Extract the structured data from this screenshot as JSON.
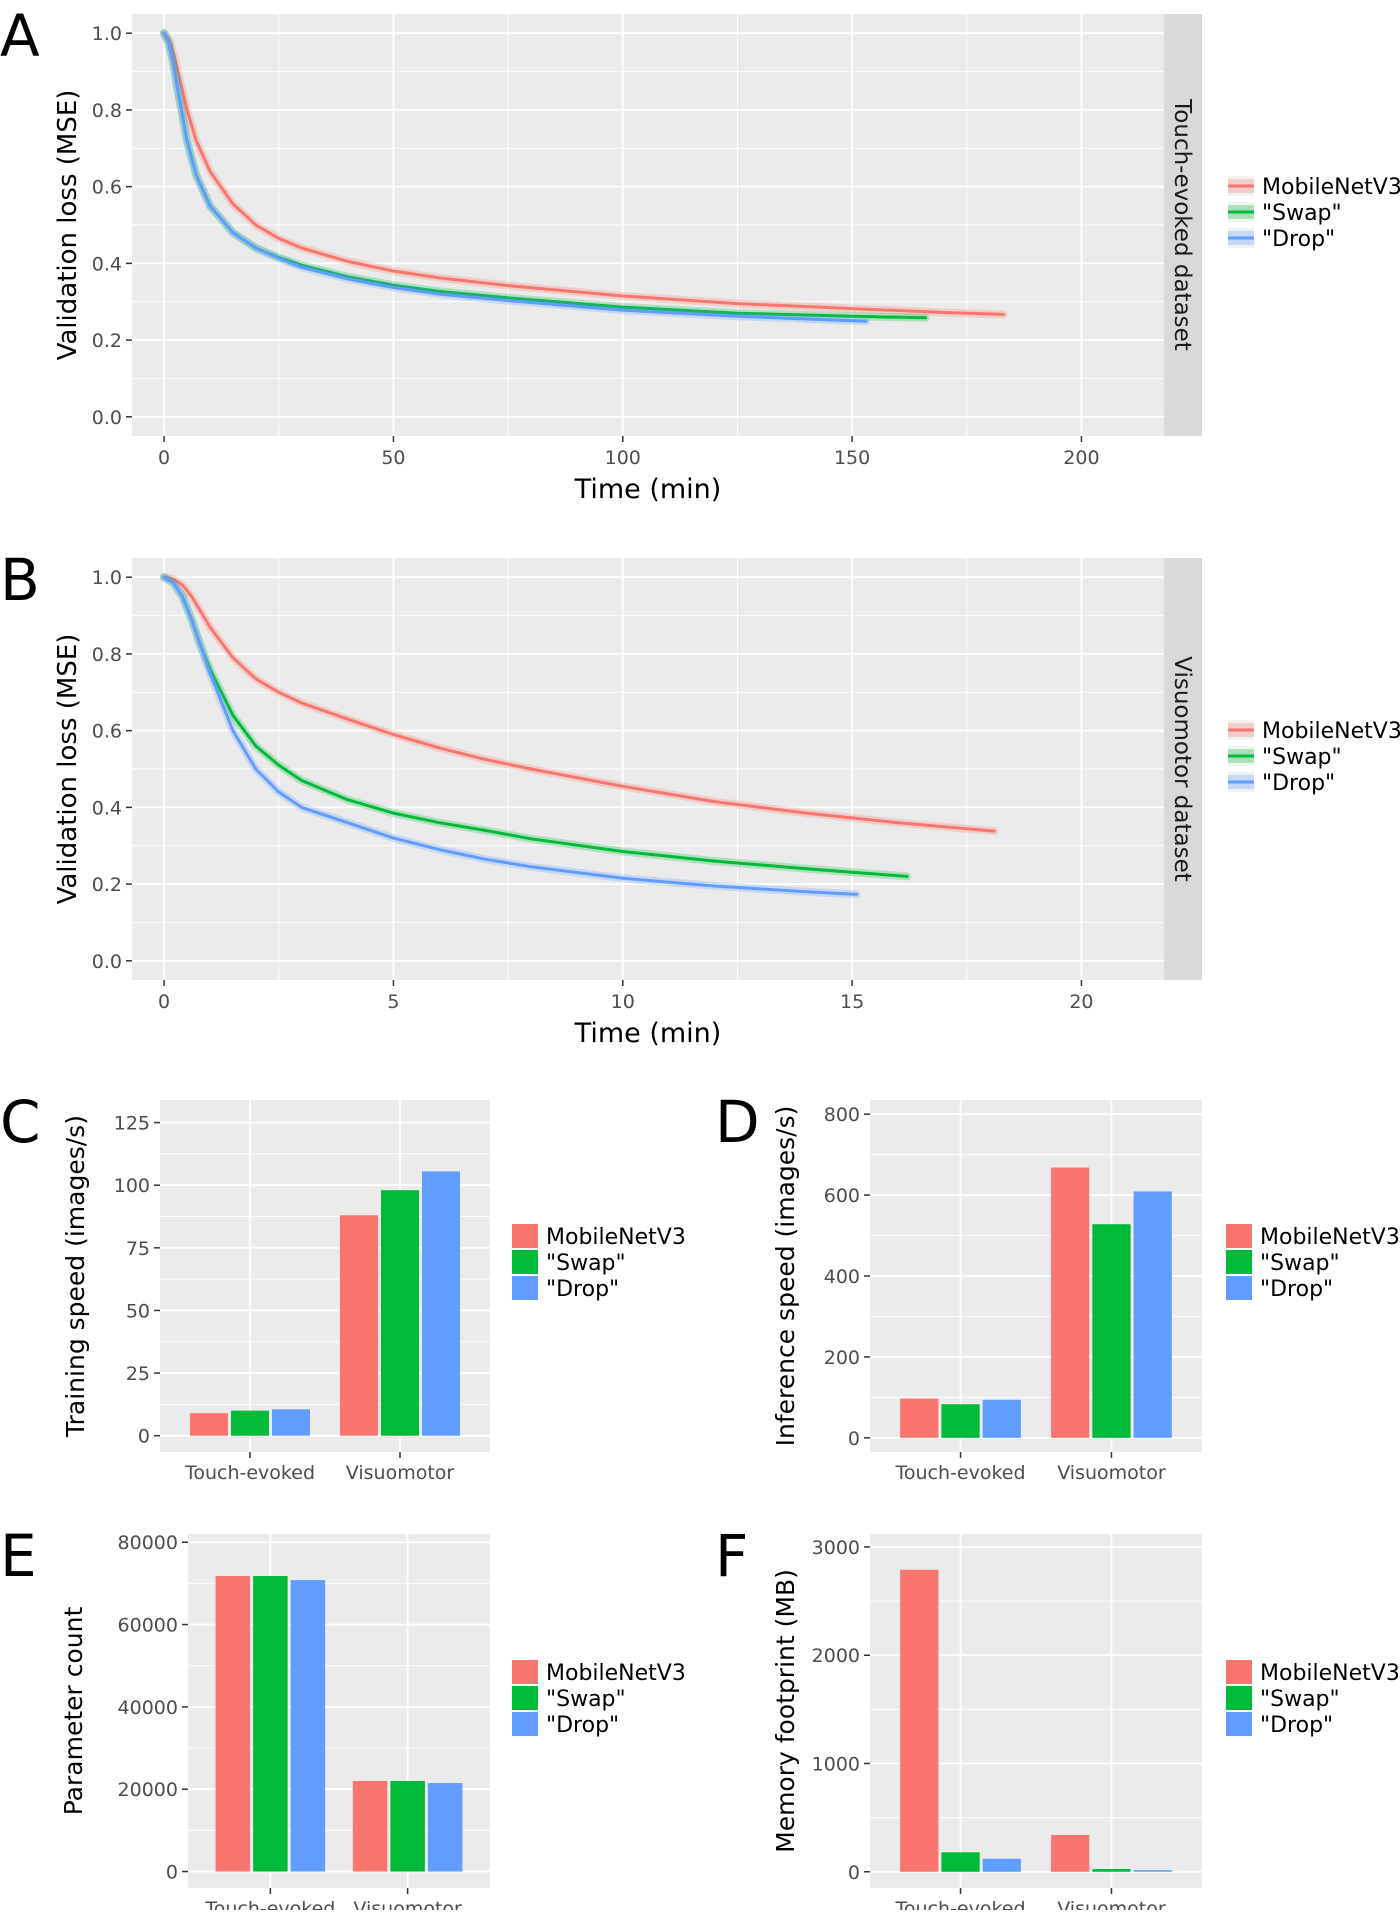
{
  "colors": {
    "panel_bg": "#EBEBEB",
    "grid_major": "#FFFFFF",
    "strip_bg": "#D9D9D9",
    "axis_text": "#4D4D4D",
    "title_text": "#000000",
    "MobileNetV3": "#F8766D",
    "Swap": "#00BA38",
    "Drop": "#619CFF"
  },
  "legend": {
    "entries": [
      "MobileNetV3",
      "\"Swap\"",
      "\"Drop\""
    ]
  },
  "chart_data": [
    {
      "id": "A",
      "panel_label": "A",
      "type": "line",
      "xlabel": "Time (min)",
      "ylabel": "Validation loss (MSE)",
      "strip_label": "Touch-evoked dataset",
      "xlim": [
        -7,
        218
      ],
      "ylim": [
        -0.05,
        1.05
      ],
      "xticks": [
        0,
        50,
        100,
        150,
        200
      ],
      "xtick_labels": [
        "0",
        "50",
        "100",
        "150",
        "200"
      ],
      "yticks": [
        0.0,
        0.2,
        0.4,
        0.6,
        0.8,
        1.0
      ],
      "ytick_labels": [
        "0.0",
        "0.2",
        "0.4",
        "0.6",
        "0.8",
        "1.0"
      ],
      "series": [
        {
          "name": "MobileNetV3",
          "x": [
            0,
            1,
            2,
            3,
            5,
            7,
            10,
            15,
            20,
            25,
            30,
            40,
            50,
            60,
            75,
            100,
            125,
            150,
            170,
            183
          ],
          "y": [
            1.0,
            0.985,
            0.95,
            0.9,
            0.8,
            0.72,
            0.64,
            0.555,
            0.5,
            0.465,
            0.44,
            0.405,
            0.38,
            0.362,
            0.342,
            0.315,
            0.295,
            0.282,
            0.272,
            0.267
          ]
        },
        {
          "name": "\"Swap\"",
          "x": [
            0,
            1,
            2,
            3,
            5,
            7,
            10,
            15,
            20,
            25,
            30,
            40,
            50,
            60,
            75,
            100,
            125,
            150,
            166
          ],
          "y": [
            1.0,
            0.975,
            0.92,
            0.85,
            0.72,
            0.63,
            0.55,
            0.48,
            0.44,
            0.415,
            0.395,
            0.365,
            0.343,
            0.327,
            0.31,
            0.286,
            0.27,
            0.262,
            0.258
          ]
        },
        {
          "name": "\"Drop\"",
          "x": [
            0,
            1,
            2,
            3,
            5,
            7,
            10,
            15,
            20,
            25,
            30,
            40,
            50,
            60,
            75,
            100,
            125,
            140,
            153
          ],
          "y": [
            1.0,
            0.975,
            0.92,
            0.85,
            0.72,
            0.63,
            0.55,
            0.48,
            0.44,
            0.413,
            0.39,
            0.36,
            0.337,
            0.32,
            0.303,
            0.278,
            0.262,
            0.255,
            0.249
          ]
        }
      ]
    },
    {
      "id": "B",
      "panel_label": "B",
      "type": "line",
      "xlabel": "Time (min)",
      "ylabel": "Validation loss (MSE)",
      "strip_label": "Visuomotor dataset",
      "xlim": [
        -0.7,
        21.8
      ],
      "ylim": [
        -0.05,
        1.05
      ],
      "xticks": [
        0,
        5,
        10,
        15,
        20
      ],
      "xtick_labels": [
        "0",
        "5",
        "10",
        "15",
        "20"
      ],
      "yticks": [
        0.0,
        0.2,
        0.4,
        0.6,
        0.8,
        1.0
      ],
      "ytick_labels": [
        "0.0",
        "0.2",
        "0.4",
        "0.6",
        "0.8",
        "1.0"
      ],
      "series": [
        {
          "name": "MobileNetV3",
          "x": [
            0,
            0.2,
            0.4,
            0.6,
            0.8,
            1.0,
            1.5,
            2.0,
            2.5,
            3.0,
            4.0,
            5.0,
            6.0,
            7.0,
            8.0,
            10.0,
            12.0,
            14.0,
            16.0,
            18.1
          ],
          "y": [
            1.0,
            0.995,
            0.98,
            0.95,
            0.91,
            0.87,
            0.79,
            0.735,
            0.7,
            0.672,
            0.63,
            0.59,
            0.555,
            0.525,
            0.5,
            0.455,
            0.415,
            0.385,
            0.36,
            0.338
          ]
        },
        {
          "name": "\"Swap\"",
          "x": [
            0,
            0.2,
            0.4,
            0.6,
            0.8,
            1.0,
            1.5,
            2.0,
            2.5,
            3.0,
            4.0,
            5.0,
            6.0,
            7.0,
            8.0,
            10.0,
            12.0,
            14.0,
            16.2
          ],
          "y": [
            1.0,
            0.985,
            0.95,
            0.89,
            0.82,
            0.76,
            0.64,
            0.56,
            0.51,
            0.47,
            0.42,
            0.385,
            0.36,
            0.34,
            0.318,
            0.285,
            0.26,
            0.24,
            0.22
          ]
        },
        {
          "name": "\"Drop\"",
          "x": [
            0,
            0.2,
            0.4,
            0.6,
            0.8,
            1.0,
            1.5,
            2.0,
            2.5,
            3.0,
            4.0,
            5.0,
            6.0,
            7.0,
            8.0,
            10.0,
            12.0,
            14.0,
            15.1
          ],
          "y": [
            1.0,
            0.985,
            0.95,
            0.89,
            0.82,
            0.75,
            0.6,
            0.5,
            0.44,
            0.4,
            0.36,
            0.32,
            0.29,
            0.265,
            0.245,
            0.215,
            0.195,
            0.18,
            0.173
          ]
        }
      ]
    },
    {
      "id": "C",
      "panel_label": "C",
      "type": "bar",
      "ylabel": "Training speed (images/s)",
      "ylim": [
        -6.5,
        134
      ],
      "yticks": [
        0,
        25,
        50,
        75,
        100,
        125
      ],
      "ytick_labels": [
        "0",
        "25",
        "50",
        "75",
        "100",
        "125"
      ],
      "categories": [
        "Touch-evoked",
        "Visuomotor"
      ],
      "series": [
        {
          "name": "MobileNetV3",
          "values": [
            9,
            88
          ]
        },
        {
          "name": "\"Swap\"",
          "values": [
            10,
            98
          ]
        },
        {
          "name": "\"Drop\"",
          "values": [
            10.5,
            105.5
          ]
        }
      ]
    },
    {
      "id": "D",
      "panel_label": "D",
      "type": "bar",
      "ylabel": "Inference speed (images/s)",
      "ylim": [
        -35,
        835
      ],
      "yticks": [
        0,
        200,
        400,
        600,
        800
      ],
      "ytick_labels": [
        "0",
        "200",
        "400",
        "600",
        "800"
      ],
      "categories": [
        "Touch-evoked",
        "Visuomotor"
      ],
      "series": [
        {
          "name": "MobileNetV3",
          "values": [
            97,
            668
          ]
        },
        {
          "name": "\"Swap\"",
          "values": [
            83,
            528
          ]
        },
        {
          "name": "\"Drop\"",
          "values": [
            94,
            609
          ]
        }
      ]
    },
    {
      "id": "E",
      "panel_label": "E",
      "type": "bar",
      "ylabel": "Parameter count",
      "ylim": [
        -4000,
        82000
      ],
      "yticks": [
        0,
        20000,
        40000,
        60000,
        80000
      ],
      "ytick_labels": [
        "0",
        "20000",
        "40000",
        "60000",
        "80000"
      ],
      "categories": [
        "Touch-evoked",
        "Visuomotor"
      ],
      "series": [
        {
          "name": "MobileNetV3",
          "values": [
            71800,
            22000
          ]
        },
        {
          "name": "\"Swap\"",
          "values": [
            71800,
            22000
          ]
        },
        {
          "name": "\"Drop\"",
          "values": [
            70800,
            21500
          ]
        }
      ]
    },
    {
      "id": "F",
      "panel_label": "F",
      "type": "bar",
      "ylabel": "Memory footprint (MB)",
      "ylim": [
        -150,
        3120
      ],
      "yticks": [
        0,
        1000,
        2000,
        3000
      ],
      "ytick_labels": [
        "0",
        "1000",
        "2000",
        "3000"
      ],
      "categories": [
        "Touch-evoked",
        "Visuomotor"
      ],
      "series": [
        {
          "name": "MobileNetV3",
          "values": [
            2790,
            340
          ]
        },
        {
          "name": "\"Swap\"",
          "values": [
            180,
            25
          ]
        },
        {
          "name": "\"Drop\"",
          "values": [
            120,
            15
          ]
        }
      ]
    }
  ]
}
